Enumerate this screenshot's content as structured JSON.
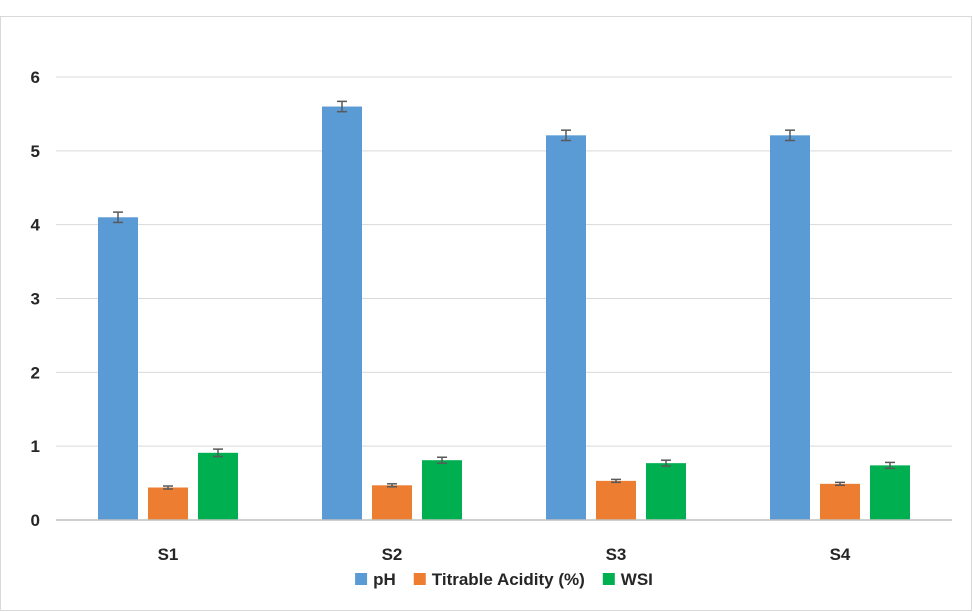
{
  "chart_data": {
    "type": "bar",
    "categories": [
      "S1",
      "S2",
      "S3",
      "S4"
    ],
    "series": [
      {
        "name": "pH",
        "values": [
          4.1,
          5.6,
          5.21,
          5.21
        ],
        "errors": [
          0.07,
          0.07,
          0.07,
          0.07
        ],
        "color": "#5B9BD5"
      },
      {
        "name": "Titrable Acidity (%)",
        "values": [
          0.44,
          0.47,
          0.53,
          0.49
        ],
        "errors": [
          0.02,
          0.02,
          0.02,
          0.02
        ],
        "color": "#ED7D31"
      },
      {
        "name": "WSI",
        "values": [
          0.91,
          0.81,
          0.77,
          0.74
        ],
        "errors": [
          0.05,
          0.04,
          0.04,
          0.04
        ],
        "color": "#00B050"
      }
    ],
    "y_ticks": [
      "0",
      "1",
      "2",
      "3",
      "4",
      "5",
      "6"
    ],
    "ylim": [
      0,
      6
    ],
    "grid": true,
    "legend_position": "bottom",
    "title": "",
    "xlabel": "",
    "ylabel": ""
  }
}
